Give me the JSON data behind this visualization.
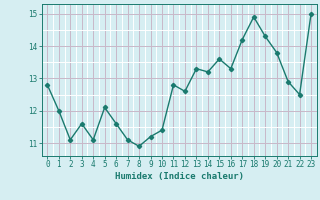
{
  "x": [
    0,
    1,
    2,
    3,
    4,
    5,
    6,
    7,
    8,
    9,
    10,
    11,
    12,
    13,
    14,
    15,
    16,
    17,
    18,
    19,
    20,
    21,
    22,
    23
  ],
  "y": [
    12.8,
    12.0,
    11.1,
    11.6,
    11.1,
    12.1,
    11.6,
    11.1,
    10.9,
    11.2,
    11.4,
    12.8,
    12.6,
    13.3,
    13.2,
    13.6,
    13.3,
    14.2,
    14.9,
    14.3,
    13.8,
    12.9,
    12.5,
    15.0
  ],
  "xlabel": "Humidex (Indice chaleur)",
  "ylim": [
    10.6,
    15.3
  ],
  "yticks": [
    11,
    12,
    13,
    14,
    15
  ],
  "xticks": [
    0,
    1,
    2,
    3,
    4,
    5,
    6,
    7,
    8,
    9,
    10,
    11,
    12,
    13,
    14,
    15,
    16,
    17,
    18,
    19,
    20,
    21,
    22,
    23
  ],
  "line_color": "#1a7a6e",
  "marker": "D",
  "marker_size": 2.2,
  "bg_color": "#d6eef2",
  "grid_color_major": "#c8b8c8",
  "grid_color_minor": "#ffffff",
  "line_width": 1.0
}
